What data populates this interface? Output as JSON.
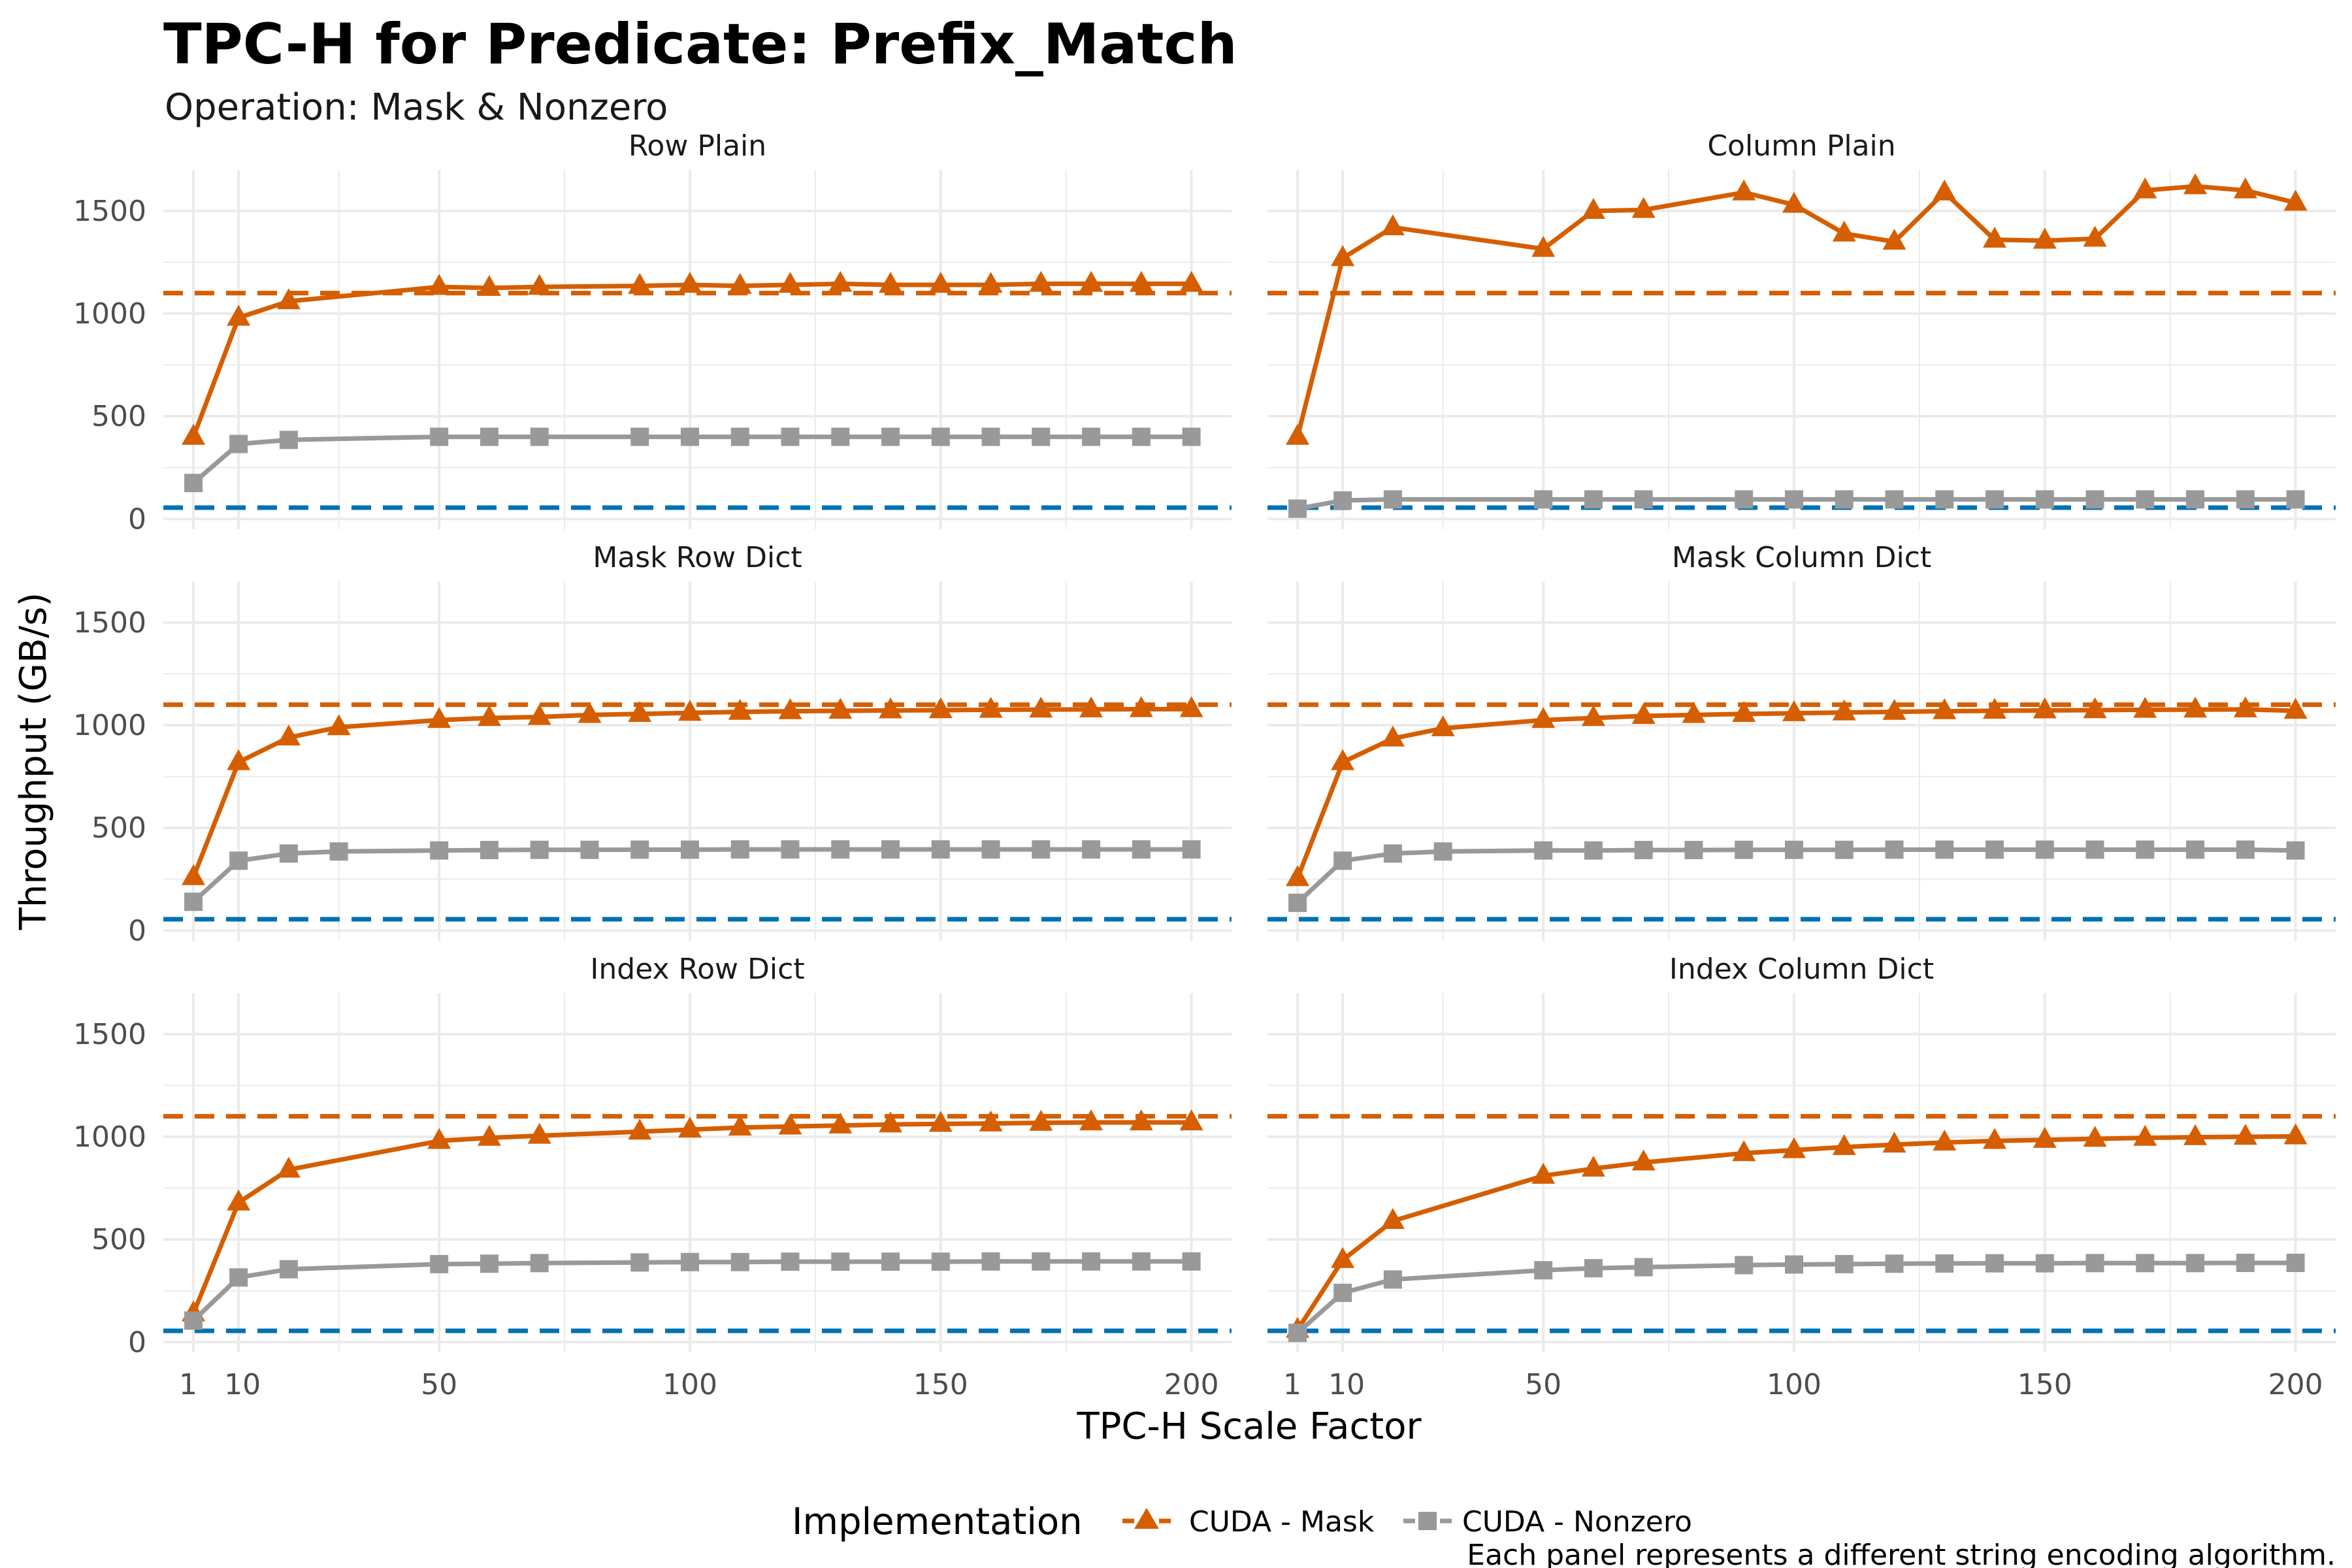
{
  "title": "TPC-H for Predicate: Prefix_Match",
  "subtitle": "Operation: Mask & Nonzero",
  "caption": "Each panel represents a different string encoding algorithm.",
  "legend": {
    "title": "Implementation",
    "placement": "bottom"
  },
  "colors": {
    "mask": "#D55E00",
    "nonzero": "#999999",
    "ref_mask": "#D55E00",
    "ref_nonzero": "#0072B2",
    "grid": "#ebebeb"
  },
  "chart_data": {
    "type": "line",
    "facets": "3x2",
    "xlabel": "TPC-H Scale Factor",
    "ylabel": "Throughput (GB/s)",
    "xticks": [
      1,
      10,
      50,
      100,
      150,
      200
    ],
    "yticks": [
      0,
      500,
      1000,
      1500
    ],
    "xlim": [
      -5,
      208
    ],
    "ylim": [
      -50,
      1700
    ],
    "x": [
      1,
      10,
      20,
      30,
      50,
      60,
      70,
      80,
      90,
      100,
      110,
      120,
      130,
      140,
      150,
      160,
      170,
      180,
      190,
      200
    ],
    "reference_lines": [
      {
        "series": "CUDA - Mask",
        "y": 1100,
        "style": "dashed"
      },
      {
        "series": "CUDA - Nonzero",
        "y": 55,
        "style": "dashed"
      }
    ],
    "series_meta": [
      {
        "name": "CUDA - Mask",
        "marker": "triangle",
        "color": "#D55E00"
      },
      {
        "name": "CUDA - Nonzero",
        "marker": "square",
        "color": "#999999"
      }
    ],
    "panels": [
      {
        "name": "Row Plain",
        "x": [
          1,
          10,
          20,
          50,
          60,
          70,
          90,
          100,
          110,
          120,
          130,
          140,
          150,
          160,
          170,
          180,
          190,
          200
        ],
        "series": [
          {
            "name": "CUDA - Mask",
            "values": [
              400,
              980,
              1060,
              1130,
              1125,
              1130,
              1135,
              1140,
              1135,
              1140,
              1145,
              1140,
              1140,
              1140,
              1145,
              1145,
              1145,
              1145
            ]
          },
          {
            "name": "CUDA - Nonzero",
            "values": [
              175,
              365,
              385,
              400,
              400,
              400,
              400,
              400,
              400,
              400,
              400,
              400,
              400,
              400,
              400,
              400,
              400,
              400
            ]
          }
        ]
      },
      {
        "name": "Column Plain",
        "x": [
          1,
          10,
          20,
          50,
          60,
          70,
          90,
          100,
          110,
          120,
          130,
          140,
          150,
          160,
          170,
          180,
          190,
          200
        ],
        "series": [
          {
            "name": "CUDA - Mask",
            "values": [
              400,
              1270,
              1420,
              1315,
              1500,
              1505,
              1590,
              1530,
              1390,
              1350,
              1590,
              1360,
              1355,
              1365,
              1600,
              1620,
              1600,
              1540
            ]
          },
          {
            "name": "CUDA - Nonzero",
            "values": [
              50,
              90,
              95,
              95,
              95,
              95,
              95,
              95,
              95,
              95,
              95,
              95,
              95,
              95,
              95,
              95,
              95,
              95
            ]
          }
        ]
      },
      {
        "name": "Mask Row Dict",
        "x": [
          1,
          10,
          20,
          30,
          50,
          60,
          70,
          80,
          90,
          100,
          110,
          120,
          130,
          140,
          150,
          160,
          170,
          180,
          190,
          200
        ],
        "series": [
          {
            "name": "CUDA - Mask",
            "values": [
              260,
              820,
              940,
              990,
              1025,
              1035,
              1040,
              1050,
              1055,
              1060,
              1065,
              1068,
              1070,
              1072,
              1073,
              1075,
              1076,
              1077,
              1078,
              1078
            ]
          },
          {
            "name": "CUDA - Nonzero",
            "values": [
              140,
              340,
              375,
              385,
              390,
              392,
              393,
              393,
              394,
              394,
              395,
              395,
              395,
              395,
              395,
              395,
              395,
              395,
              395,
              395
            ]
          }
        ]
      },
      {
        "name": "Mask Column Dict",
        "x": [
          1,
          10,
          20,
          30,
          50,
          60,
          70,
          80,
          90,
          100,
          110,
          120,
          130,
          140,
          150,
          160,
          170,
          180,
          190,
          200
        ],
        "series": [
          {
            "name": "CUDA - Mask",
            "values": [
              255,
              820,
              935,
              985,
              1025,
              1035,
              1045,
              1050,
              1055,
              1058,
              1062,
              1065,
              1068,
              1070,
              1072,
              1073,
              1075,
              1076,
              1077,
              1070
            ]
          },
          {
            "name": "CUDA - Nonzero",
            "values": [
              135,
              340,
              375,
              385,
              390,
              390,
              392,
              392,
              393,
              393,
              393,
              394,
              394,
              394,
              394,
              394,
              394,
              394,
              394,
              390
            ]
          }
        ]
      },
      {
        "name": "Index Row Dict",
        "x": [
          1,
          10,
          20,
          50,
          60,
          70,
          90,
          100,
          110,
          120,
          130,
          140,
          150,
          160,
          170,
          180,
          190,
          200
        ],
        "series": [
          {
            "name": "CUDA - Mask",
            "values": [
              140,
              680,
              840,
              980,
              995,
              1005,
              1025,
              1035,
              1045,
              1050,
              1055,
              1060,
              1063,
              1065,
              1068,
              1070,
              1070,
              1070
            ]
          },
          {
            "name": "CUDA - Nonzero",
            "values": [
              105,
              315,
              355,
              380,
              382,
              385,
              388,
              390,
              390,
              392,
              392,
              392,
              392,
              393,
              393,
              393,
              393,
              393
            ]
          }
        ]
      },
      {
        "name": "Index Column Dict",
        "x": [
          1,
          10,
          20,
          50,
          60,
          70,
          90,
          100,
          110,
          120,
          130,
          140,
          150,
          160,
          170,
          180,
          190,
          200
        ],
        "series": [
          {
            "name": "CUDA - Mask",
            "values": [
              60,
              400,
              590,
              810,
              845,
              875,
              920,
              935,
              950,
              962,
              972,
              980,
              985,
              990,
              995,
              998,
              1000,
              1002
            ]
          },
          {
            "name": "CUDA - Nonzero",
            "values": [
              45,
              240,
              305,
              350,
              360,
              365,
              375,
              378,
              380,
              382,
              383,
              384,
              384,
              385,
              385,
              385,
              386,
              386
            ]
          }
        ]
      }
    ]
  }
}
